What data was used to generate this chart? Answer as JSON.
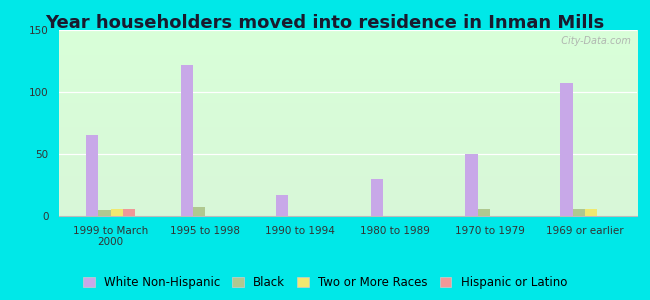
{
  "title": "Year householders moved into residence in Inman Mills",
  "categories": [
    "1999 to March\n2000",
    "1995 to 1998",
    "1990 to 1994",
    "1980 to 1989",
    "1970 to 1979",
    "1969 or earlier"
  ],
  "series": {
    "White Non-Hispanic": [
      65,
      122,
      17,
      30,
      50,
      107
    ],
    "Black": [
      5,
      7,
      0,
      0,
      6,
      6
    ],
    "Two or More Races": [
      6,
      0,
      0,
      0,
      0,
      6
    ],
    "Hispanic or Latino": [
      6,
      0,
      0,
      0,
      0,
      0
    ]
  },
  "colors": {
    "White Non-Hispanic": "#c8a8e8",
    "Black": "#b0c890",
    "Two or More Races": "#f0e870",
    "Hispanic or Latino": "#f09898"
  },
  "ylim": [
    0,
    150
  ],
  "yticks": [
    0,
    50,
    100,
    150
  ],
  "bar_width": 0.13,
  "outer_background": "#00e8e8",
  "title_fontsize": 13,
  "tick_fontsize": 7.5,
  "legend_fontsize": 8.5,
  "watermark": "  City-Data.com"
}
